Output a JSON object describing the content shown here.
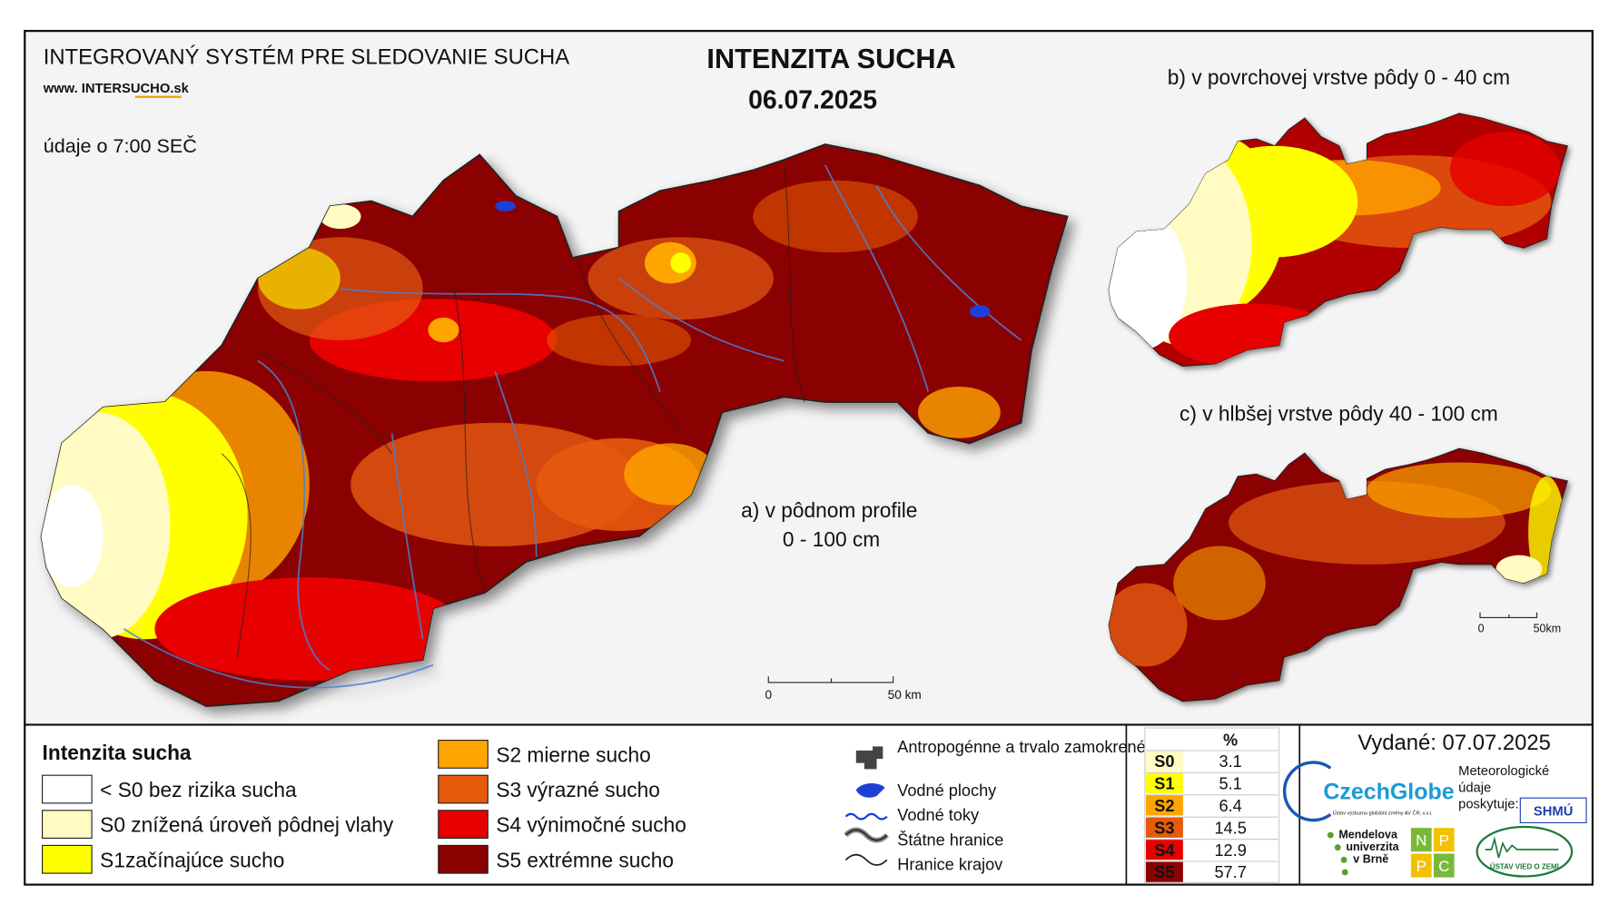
{
  "header": {
    "system": "INTEGROVANÝ SYSTÉM PRE SLEDOVANIE SUCHA",
    "website": "www. INTERSUCHO.sk",
    "time_note": "údaje o 7:00 SEČ",
    "title": "INTENZITA SUCHA",
    "date": "06.07.2025"
  },
  "maps": {
    "a_label": "a) v pôdnom profile",
    "a_depth": "0 - 100 cm",
    "b_label": "b) v povrchovej vrstve pôdy 0 - 40 cm",
    "c_label": "c) v hlbšej vrstve pôdy 40 - 100 cm",
    "scale_a": {
      "zero": "0",
      "end": "50 km"
    },
    "scale_small": {
      "zero": "0",
      "end": "50km"
    }
  },
  "legend": {
    "title": "Intenzita sucha",
    "items": [
      {
        "label": "< S0 bez rizika sucha",
        "color": "#ffffff"
      },
      {
        "label": "S0 znížená úroveň pôdnej vlahy",
        "color": "#fffbc2"
      },
      {
        "label": "S1začínajúce sucho",
        "color": "#ffff00"
      },
      {
        "label": "S2 mierne sucho",
        "color": "#ffa500"
      },
      {
        "label": "S3 výrazné sucho",
        "color": "#e65a0a"
      },
      {
        "label": "S4 výnimočné sucho",
        "color": "#e60000"
      },
      {
        "label": "S5 extrémne sucho",
        "color": "#8b0000"
      }
    ]
  },
  "symbols": [
    {
      "label": "Antropogénne a trvalo zamokrené oblasti"
    },
    {
      "label": "Vodné plochy"
    },
    {
      "label": "Vodné toky"
    },
    {
      "label": "Štátne hranice"
    },
    {
      "label": "Hranice krajov"
    }
  ],
  "stats": {
    "header": "%",
    "rows": [
      {
        "class": "S0",
        "percent": 3.1,
        "color": "#fffbc2"
      },
      {
        "class": "S1",
        "percent": 5.1,
        "color": "#ffff00"
      },
      {
        "class": "S2",
        "percent": 6.4,
        "color": "#ffa500"
      },
      {
        "class": "S3",
        "percent": 14.5,
        "color": "#e65a0a"
      },
      {
        "class": "S4",
        "percent": 12.9,
        "color": "#e60000"
      },
      {
        "class": "S5",
        "percent": 57.7,
        "color": "#8b0000"
      }
    ]
  },
  "issued": "Vydané: 07.07.2025",
  "credits": {
    "czechglobe": "CzechGlobe",
    "czechglobe_sub": "Ústav výzkumu globální změny AV ČR, v.v.i.",
    "meteo": [
      "Meteorologické",
      "údaje",
      "poskytuje:"
    ],
    "shmu": "SHMÚ",
    "mendel": [
      "Mendelova",
      "univerzita",
      "v Brně"
    ],
    "nppc": [
      "N",
      "P",
      "P",
      "C"
    ],
    "uvz": "ÚSTAV VIED O ZEMI"
  }
}
